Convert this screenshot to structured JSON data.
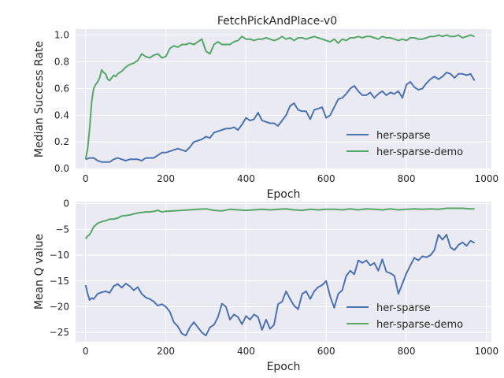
{
  "figure_title": "FetchPickAndPlace-v0",
  "chart_data": [
    {
      "type": "line",
      "title": "FetchPickAndPlace-v0",
      "xlabel": "Epoch",
      "ylabel": "Median Success Rate",
      "xlim": [
        -25,
        1012
      ],
      "ylim": [
        -0.005,
        1.045
      ],
      "xticks": [
        0,
        200,
        400,
        600,
        800,
        1000
      ],
      "yticks": [
        0.0,
        0.2,
        0.4,
        0.6,
        0.8,
        1.0
      ],
      "ytick_labels": [
        "0.0",
        "0.2",
        "0.4",
        "0.6",
        "0.8",
        "1.0"
      ],
      "grid": true,
      "legend_position": "lower-right",
      "series": [
        {
          "name": "her-sparse",
          "color": "#4c72b0",
          "x": [
            0,
            10,
            20,
            30,
            40,
            50,
            60,
            70,
            80,
            90,
            100,
            110,
            120,
            130,
            140,
            150,
            160,
            170,
            180,
            190,
            200,
            210,
            220,
            230,
            240,
            250,
            260,
            270,
            280,
            290,
            300,
            310,
            320,
            330,
            340,
            350,
            360,
            370,
            380,
            390,
            400,
            410,
            420,
            430,
            440,
            450,
            460,
            470,
            480,
            490,
            500,
            510,
            520,
            530,
            540,
            550,
            560,
            570,
            580,
            590,
            600,
            610,
            620,
            630,
            640,
            650,
            660,
            670,
            680,
            690,
            700,
            710,
            720,
            730,
            740,
            750,
            760,
            770,
            780,
            790,
            800,
            810,
            820,
            830,
            840,
            850,
            860,
            870,
            880,
            890,
            900,
            910,
            920,
            930,
            940,
            950,
            960,
            970
          ],
          "y": [
            0.07,
            0.08,
            0.08,
            0.06,
            0.05,
            0.05,
            0.05,
            0.07,
            0.08,
            0.07,
            0.06,
            0.07,
            0.07,
            0.07,
            0.06,
            0.08,
            0.08,
            0.08,
            0.1,
            0.12,
            0.12,
            0.13,
            0.14,
            0.15,
            0.14,
            0.13,
            0.16,
            0.2,
            0.21,
            0.22,
            0.24,
            0.23,
            0.27,
            0.28,
            0.29,
            0.3,
            0.3,
            0.31,
            0.29,
            0.33,
            0.38,
            0.36,
            0.37,
            0.42,
            0.36,
            0.35,
            0.34,
            0.34,
            0.32,
            0.36,
            0.4,
            0.47,
            0.49,
            0.44,
            0.43,
            0.43,
            0.37,
            0.44,
            0.45,
            0.46,
            0.38,
            0.4,
            0.46,
            0.52,
            0.53,
            0.56,
            0.6,
            0.62,
            0.58,
            0.55,
            0.55,
            0.57,
            0.53,
            0.56,
            0.58,
            0.55,
            0.57,
            0.56,
            0.58,
            0.53,
            0.63,
            0.65,
            0.61,
            0.59,
            0.6,
            0.64,
            0.67,
            0.69,
            0.67,
            0.69,
            0.72,
            0.71,
            0.68,
            0.71,
            0.71,
            0.7,
            0.71,
            0.66
          ]
        },
        {
          "name": "her-sparse-demo",
          "color": "#55a868",
          "x": [
            0,
            5,
            10,
            15,
            20,
            25,
            30,
            35,
            40,
            45,
            50,
            55,
            60,
            65,
            70,
            75,
            80,
            90,
            100,
            110,
            120,
            130,
            140,
            150,
            160,
            170,
            180,
            190,
            200,
            210,
            220,
            230,
            240,
            250,
            260,
            270,
            280,
            290,
            300,
            310,
            320,
            330,
            340,
            350,
            360,
            370,
            380,
            390,
            400,
            410,
            420,
            430,
            440,
            450,
            460,
            470,
            480,
            490,
            500,
            510,
            520,
            530,
            540,
            550,
            560,
            570,
            580,
            590,
            600,
            610,
            620,
            630,
            640,
            650,
            660,
            670,
            680,
            690,
            700,
            710,
            720,
            730,
            740,
            750,
            760,
            770,
            780,
            790,
            800,
            810,
            820,
            830,
            840,
            850,
            860,
            870,
            880,
            890,
            900,
            910,
            920,
            930,
            940,
            950,
            960,
            970
          ],
          "y": [
            0.07,
            0.15,
            0.3,
            0.5,
            0.6,
            0.63,
            0.65,
            0.68,
            0.74,
            0.72,
            0.71,
            0.67,
            0.66,
            0.68,
            0.7,
            0.69,
            0.71,
            0.73,
            0.76,
            0.78,
            0.79,
            0.81,
            0.86,
            0.84,
            0.83,
            0.85,
            0.86,
            0.83,
            0.84,
            0.9,
            0.92,
            0.91,
            0.93,
            0.93,
            0.94,
            0.93,
            0.95,
            0.97,
            0.88,
            0.86,
            0.93,
            0.95,
            0.93,
            0.93,
            0.93,
            0.95,
            0.96,
            0.99,
            0.97,
            0.97,
            0.96,
            0.97,
            0.97,
            0.98,
            0.97,
            0.96,
            0.97,
            0.99,
            0.97,
            0.98,
            0.96,
            0.98,
            0.98,
            0.97,
            0.98,
            0.99,
            0.98,
            0.97,
            0.96,
            0.95,
            0.97,
            0.94,
            0.97,
            0.96,
            0.98,
            0.98,
            0.99,
            0.98,
            0.99,
            0.99,
            0.98,
            0.97,
            0.99,
            0.98,
            0.98,
            0.97,
            0.96,
            0.97,
            0.96,
            0.98,
            0.98,
            0.97,
            0.97,
            0.98,
            0.99,
            0.99,
            1.0,
            0.99,
            1.0,
            0.99,
            0.99,
            1.0,
            0.98,
            0.99,
            1.0,
            0.99
          ]
        }
      ]
    },
    {
      "type": "line",
      "title": "",
      "xlabel": "Epoch",
      "ylabel": "Mean Q value",
      "xlim": [
        -25,
        1012
      ],
      "ylim": [
        -26.8,
        0.4
      ],
      "xticks": [
        0,
        200,
        400,
        600,
        800,
        1000
      ],
      "yticks": [
        0,
        -5,
        -10,
        -15,
        -20,
        -25
      ],
      "ytick_labels": [
        "0",
        "−5",
        "−10",
        "−15",
        "−20",
        "−25"
      ],
      "grid": true,
      "legend_position": "lower-right",
      "series": [
        {
          "name": "her-sparse",
          "color": "#4c72b0",
          "x": [
            0,
            5,
            10,
            15,
            20,
            30,
            40,
            50,
            60,
            70,
            80,
            90,
            100,
            110,
            120,
            130,
            140,
            150,
            160,
            170,
            180,
            190,
            200,
            210,
            220,
            230,
            240,
            250,
            260,
            270,
            280,
            290,
            300,
            310,
            320,
            330,
            340,
            350,
            360,
            370,
            380,
            390,
            400,
            410,
            420,
            430,
            440,
            450,
            460,
            470,
            480,
            490,
            500,
            510,
            520,
            530,
            540,
            550,
            560,
            570,
            580,
            590,
            600,
            610,
            620,
            630,
            640,
            650,
            660,
            670,
            680,
            690,
            700,
            710,
            720,
            730,
            740,
            750,
            760,
            770,
            780,
            790,
            800,
            810,
            820,
            830,
            840,
            850,
            860,
            870,
            880,
            890,
            900,
            910,
            920,
            930,
            940,
            950,
            960,
            970
          ],
          "y": [
            -15.8,
            -17.5,
            -18.7,
            -18.3,
            -18.5,
            -17.5,
            -17.2,
            -17.0,
            -17.3,
            -16.0,
            -15.6,
            -16.3,
            -15.5,
            -16.0,
            -16.8,
            -16.2,
            -17.5,
            -18.2,
            -18.5,
            -19.0,
            -19.8,
            -19.5,
            -20.0,
            -21.0,
            -23.0,
            -23.8,
            -25.2,
            -25.6,
            -24.0,
            -23.0,
            -24.0,
            -25.0,
            -25.6,
            -24.0,
            -23.5,
            -22.0,
            -19.4,
            -20.0,
            -22.5,
            -21.5,
            -22.0,
            -23.4,
            -21.8,
            -22.5,
            -21.5,
            -22.0,
            -24.5,
            -22.5,
            -24.3,
            -23.5,
            -19.5,
            -19.0,
            -17.0,
            -18.5,
            -19.8,
            -20.5,
            -17.5,
            -17.0,
            -18.5,
            -17.0,
            -16.2,
            -15.8,
            -15.0,
            -18.0,
            -20.2,
            -17.5,
            -16.8,
            -14.0,
            -13.0,
            -13.7,
            -11.0,
            -11.5,
            -11.0,
            -12.0,
            -11.5,
            -13.0,
            -10.8,
            -13.2,
            -13.5,
            -14.0,
            -17.5,
            -15.5,
            -13.5,
            -12.0,
            -10.5,
            -11.0,
            -10.2,
            -10.4,
            -10.0,
            -9.0,
            -6.0,
            -7.0,
            -6.0,
            -8.5,
            -9.0,
            -8.0,
            -7.5,
            -8.2,
            -7.2,
            -7.6
          ]
        },
        {
          "name": "her-sparse-demo",
          "color": "#55a868",
          "x": [
            0,
            5,
            10,
            15,
            20,
            30,
            40,
            50,
            60,
            70,
            80,
            90,
            100,
            110,
            120,
            130,
            140,
            150,
            160,
            170,
            180,
            190,
            200,
            220,
            240,
            260,
            280,
            300,
            320,
            340,
            360,
            380,
            400,
            420,
            440,
            460,
            480,
            500,
            520,
            540,
            560,
            580,
            600,
            620,
            640,
            660,
            680,
            700,
            720,
            740,
            760,
            780,
            800,
            820,
            840,
            860,
            880,
            900,
            920,
            940,
            960,
            970
          ],
          "y": [
            -6.8,
            -6.3,
            -6.0,
            -5.3,
            -4.5,
            -3.8,
            -3.5,
            -3.3,
            -3.0,
            -3.0,
            -2.8,
            -2.4,
            -2.3,
            -2.2,
            -2.0,
            -1.8,
            -1.7,
            -1.6,
            -1.6,
            -1.5,
            -1.3,
            -1.6,
            -1.5,
            -1.4,
            -1.3,
            -1.2,
            -1.1,
            -1.0,
            -1.3,
            -1.4,
            -1.1,
            -1.2,
            -1.3,
            -1.2,
            -1.1,
            -1.2,
            -1.1,
            -1.0,
            -1.2,
            -1.3,
            -1.1,
            -1.2,
            -1.1,
            -1.1,
            -1.2,
            -1.0,
            -1.2,
            -1.0,
            -1.1,
            -1.2,
            -1.0,
            -1.2,
            -1.1,
            -1.0,
            -1.1,
            -1.0,
            -1.1,
            -0.9,
            -0.9,
            -0.9,
            -1.0,
            -1.0
          ]
        }
      ]
    }
  ]
}
